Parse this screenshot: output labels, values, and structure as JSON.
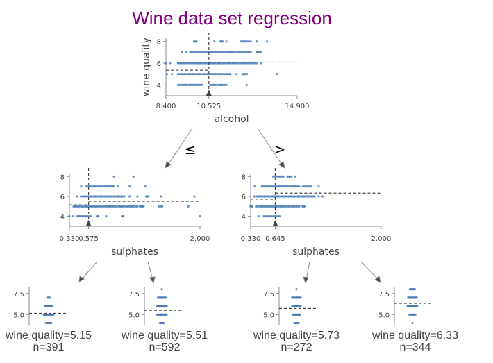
{
  "title": "Wine data set regression",
  "colors": {
    "title": "#800080",
    "dots": "#4575b4",
    "axis": "#888888",
    "text": "#444444",
    "dash": "#444444"
  },
  "edge_labels": {
    "left": "≤",
    "right": ">"
  },
  "chart_data": [
    {
      "id": "root",
      "type": "scatter",
      "feature": "alcohol",
      "ylabel": "wine quality",
      "xlim": [
        8.4,
        14.9
      ],
      "ylim": [
        3,
        8.3
      ],
      "xticks": [
        "8.400",
        "10.525",
        "14.900"
      ],
      "yticks": [
        "4",
        "6",
        "8"
      ],
      "split": 10.525,
      "split_label": "10.525",
      "mean_left": 5.35,
      "mean_right": 6.1,
      "points": {
        "4": [
          [
            9.0,
            10.2
          ],
          [
            10.6,
            11.3
          ],
          [
            11.4
          ],
          [
            12.4
          ]
        ],
        "5": [
          [
            8.45
          ],
          [
            8.7
          ],
          [
            9.0,
            11.6
          ],
          [
            11.9
          ],
          [
            12.2,
            12.4
          ],
          [
            13.9
          ]
        ],
        "6": [
          [
            8.4
          ],
          [
            8.6
          ],
          [
            9.0,
            12.4
          ],
          [
            12.5,
            12.9
          ],
          [
            13.1
          ]
        ],
        "7": [
          [
            9.2
          ],
          [
            9.4
          ],
          [
            9.6,
            12.6
          ],
          [
            12.9,
            13.0
          ],
          [
            13.1
          ]
        ],
        "8": [
          [
            9.8,
            9.9
          ],
          [
            10.8
          ],
          [
            11.1,
            11.2
          ],
          [
            11.4
          ],
          [
            12.1,
            12.5
          ],
          [
            12.6
          ],
          [
            12.9
          ],
          [
            13.4
          ]
        ]
      }
    },
    {
      "id": "left-split",
      "type": "scatter",
      "feature": "sulphates",
      "xlim": [
        0.33,
        2.0
      ],
      "ylim": [
        3,
        8.3
      ],
      "xticks": [
        "0.330",
        "0.575",
        "2.000"
      ],
      "yticks": [
        "4",
        "6",
        "8"
      ],
      "split": 0.575,
      "split_label": "0.575",
      "mean_left": 5.15,
      "mean_right": 5.51,
      "points": {
        "4": [
          [
            0.33
          ],
          [
            0.37
          ],
          [
            0.43,
            0.6
          ],
          [
            0.68,
            0.7
          ],
          [
            0.8
          ],
          [
            1.0,
            1.02
          ],
          [
            2.0
          ]
        ],
        "5": [
          [
            0.38,
            1.2
          ],
          [
            1.23,
            1.28
          ],
          [
            1.48,
            1.52
          ],
          [
            1.85
          ]
        ],
        "6": [
          [
            0.43
          ],
          [
            0.48,
            1.03
          ],
          [
            1.1
          ],
          [
            1.2
          ],
          [
            1.31,
            1.34
          ],
          [
            1.5
          ],
          [
            1.93
          ]
        ],
        "7": [
          [
            0.48
          ],
          [
            0.55,
            0.9
          ],
          [
            0.95
          ],
          [
            1.1
          ],
          [
            1.3
          ]
        ],
        "8": [
          [
            0.9
          ],
          [
            1.15
          ]
        ]
      }
    },
    {
      "id": "right-split",
      "type": "scatter",
      "feature": "sulphates",
      "xlim": [
        0.33,
        2.0
      ],
      "ylim": [
        3,
        8.3
      ],
      "xticks": [
        "0.330",
        "0.645",
        "2.000"
      ],
      "yticks": [
        "4",
        "6",
        "8"
      ],
      "split": 0.645,
      "split_label": "0.645",
      "mean_left": 5.73,
      "mean_right": 6.33,
      "points": {
        "4": [
          [
            0.43
          ],
          [
            0.5,
            0.7
          ]
        ],
        "5": [
          [
            0.33,
            0.35
          ],
          [
            0.4,
            0.95
          ],
          [
            0.99,
            1.02
          ]
        ],
        "6": [
          [
            0.38,
            1.15
          ],
          [
            1.2
          ],
          [
            1.25
          ]
        ],
        "7": [
          [
            0.38
          ],
          [
            0.47,
            0.95
          ],
          [
            1.0,
            1.1
          ],
          [
            1.2
          ]
        ],
        "8": [
          [
            0.62,
            0.75
          ],
          [
            0.8,
            0.85
          ],
          [
            0.9
          ]
        ]
      }
    }
  ],
  "leaves": [
    {
      "id": "leaf-1",
      "label": "wine quality=5.15",
      "n": "n=391",
      "mean": 5.15,
      "yticks": [
        "7.5",
        "5.0"
      ],
      "counts": {
        "4": 0.55,
        "5": 1.0,
        "6": 0.75,
        "7": 0.25,
        "8": 0
      }
    },
    {
      "id": "leaf-2",
      "label": "wine quality=5.51",
      "n": "n=592",
      "mean": 5.51,
      "yticks": [
        "7.5",
        "5.0"
      ],
      "counts": {
        "4": 0.4,
        "5": 1.0,
        "6": 1.0,
        "7": 0.8,
        "8": 0.1
      }
    },
    {
      "id": "leaf-3",
      "label": "wine quality=5.73",
      "n": "n=272",
      "mean": 5.73,
      "yticks": [
        "7.5",
        "5.0"
      ],
      "counts": {
        "4": 0.45,
        "5": 0.75,
        "6": 0.85,
        "7": 0.9,
        "8": 0.1
      }
    },
    {
      "id": "leaf-4",
      "label": "wine quality=6.33",
      "n": "n=344",
      "mean": 6.33,
      "yticks": [
        "7.5",
        "5.0"
      ],
      "counts": {
        "4": 0.05,
        "5": 0.6,
        "6": 1.0,
        "7": 0.9,
        "8": 0.5
      }
    }
  ]
}
